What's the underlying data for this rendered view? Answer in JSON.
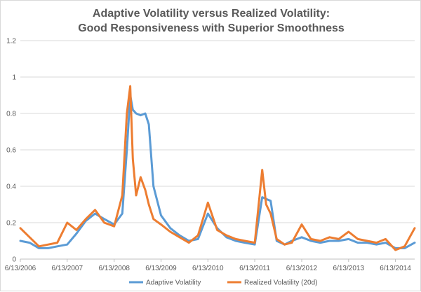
{
  "chart_data": {
    "type": "line",
    "title": "Adaptive Volatility versus Realized Volatility:",
    "subtitle": "Good Responsiveness with Superior Smoothness",
    "xlabel": "",
    "ylabel": "",
    "ylim": [
      0,
      1.2
    ],
    "y_ticks": [
      "0",
      "0.2",
      "0.4",
      "0.6",
      "0.8",
      "1",
      "1.2"
    ],
    "x_ticks": [
      "6/13/2006",
      "6/13/2007",
      "6/13/2008",
      "6/13/2009",
      "6/13/2010",
      "6/13/2011",
      "6/13/2012",
      "6/13/2013",
      "6/13/2014"
    ],
    "x_range": [
      "6/13/2006",
      "11/10/2014"
    ],
    "grid": true,
    "legend_position": "bottom",
    "series": [
      {
        "name": "Adaptive Volatility",
        "color": "#5b9bd5",
        "x": [
          "6/13/2006",
          "8/24/2006",
          "11/5/2006",
          "1/16/2007",
          "3/28/2007",
          "6/13/2007",
          "8/24/2007",
          "11/5/2007",
          "1/16/2008",
          "3/28/2008",
          "6/13/2008",
          "8/15/2008",
          "9/20/2008",
          "10/16/2008",
          "11/5/2008",
          "12/1/2008",
          "1/5/2009",
          "2/10/2009",
          "3/10/2009",
          "4/15/2009",
          "6/13/2009",
          "8/24/2009",
          "11/5/2009",
          "1/16/2010",
          "3/28/2010",
          "6/13/2010",
          "8/24/2010",
          "11/5/2010",
          "1/16/2011",
          "3/28/2011",
          "6/13/2011",
          "8/10/2011",
          "9/10/2011",
          "10/15/2011",
          "12/1/2011",
          "2/1/2012",
          "3/28/2012",
          "6/13/2012",
          "8/24/2012",
          "11/5/2012",
          "1/16/2013",
          "3/28/2013",
          "6/13/2013",
          "8/24/2013",
          "11/5/2013",
          "1/16/2014",
          "3/28/2014",
          "6/13/2014",
          "8/24/2014",
          "11/10/2014"
        ],
        "y": [
          0.1,
          0.09,
          0.06,
          0.06,
          0.07,
          0.08,
          0.14,
          0.21,
          0.25,
          0.22,
          0.19,
          0.25,
          0.6,
          0.9,
          0.82,
          0.8,
          0.79,
          0.8,
          0.74,
          0.4,
          0.24,
          0.17,
          0.13,
          0.1,
          0.11,
          0.25,
          0.17,
          0.12,
          0.1,
          0.09,
          0.08,
          0.34,
          0.33,
          0.32,
          0.1,
          0.08,
          0.1,
          0.12,
          0.1,
          0.09,
          0.1,
          0.1,
          0.11,
          0.09,
          0.09,
          0.08,
          0.09,
          0.06,
          0.06,
          0.09
        ]
      },
      {
        "name": "Realized Volatility (20d)",
        "color": "#ed7d31",
        "x": [
          "6/13/2006",
          "8/24/2006",
          "11/5/2006",
          "1/16/2007",
          "3/28/2007",
          "6/13/2007",
          "8/24/2007",
          "11/5/2007",
          "1/16/2008",
          "3/28/2008",
          "6/13/2008",
          "8/15/2008",
          "9/20/2008",
          "10/16/2008",
          "11/5/2008",
          "12/1/2008",
          "1/5/2009",
          "2/10/2009",
          "3/10/2009",
          "4/15/2009",
          "6/13/2009",
          "8/24/2009",
          "11/5/2009",
          "1/16/2010",
          "3/28/2010",
          "6/13/2010",
          "8/24/2010",
          "11/5/2010",
          "1/16/2011",
          "3/28/2011",
          "6/13/2011",
          "8/10/2011",
          "9/10/2011",
          "10/15/2011",
          "12/1/2011",
          "2/1/2012",
          "3/28/2012",
          "6/13/2012",
          "8/24/2012",
          "11/5/2012",
          "1/16/2013",
          "3/28/2013",
          "6/13/2013",
          "8/24/2013",
          "11/5/2013",
          "1/16/2014",
          "3/28/2014",
          "6/13/2014",
          "8/24/2014",
          "11/10/2014"
        ],
        "y": [
          0.17,
          0.12,
          0.07,
          0.08,
          0.09,
          0.2,
          0.16,
          0.22,
          0.27,
          0.2,
          0.18,
          0.35,
          0.8,
          0.95,
          0.55,
          0.35,
          0.45,
          0.38,
          0.3,
          0.22,
          0.19,
          0.15,
          0.12,
          0.09,
          0.13,
          0.31,
          0.16,
          0.13,
          0.11,
          0.1,
          0.09,
          0.49,
          0.3,
          0.25,
          0.11,
          0.08,
          0.09,
          0.19,
          0.11,
          0.1,
          0.12,
          0.11,
          0.15,
          0.11,
          0.1,
          0.09,
          0.11,
          0.05,
          0.07,
          0.17
        ]
      }
    ]
  }
}
